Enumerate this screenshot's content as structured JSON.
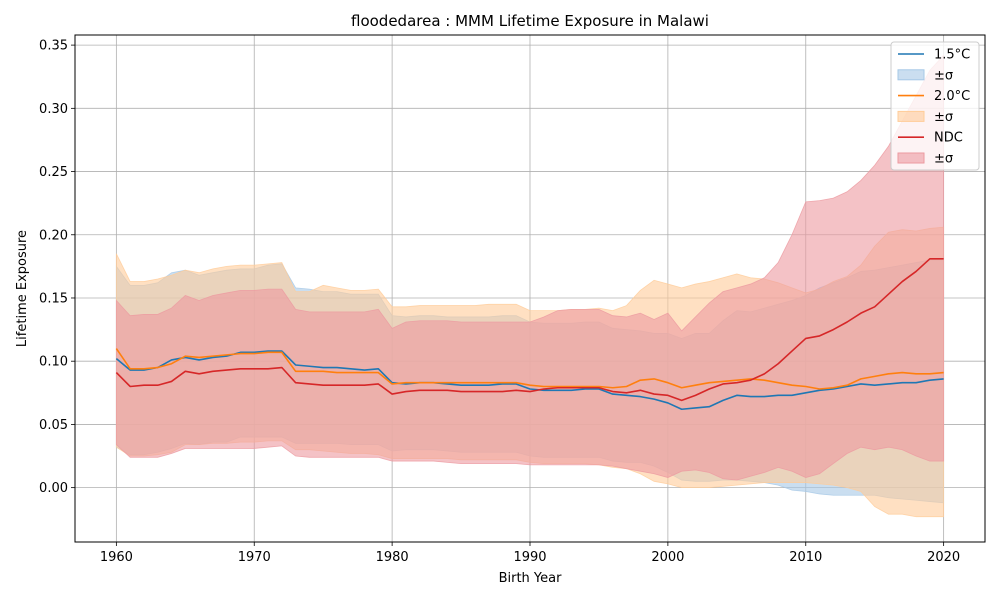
{
  "chart_data": {
    "type": "line",
    "title": "floodedarea : MMM Lifetime Exposure in Malawi",
    "xlabel": "Birth Year",
    "ylabel": "Lifetime Exposure",
    "xlim": [
      1957,
      2023
    ],
    "ylim": [
      -0.043,
      0.358
    ],
    "xticks": [
      1960,
      1970,
      1980,
      1990,
      2000,
      2010,
      2020
    ],
    "yticks": [
      0.0,
      0.05,
      0.1,
      0.15,
      0.2,
      0.25,
      0.3,
      0.35
    ],
    "ytick_labels": [
      "0.00",
      "0.05",
      "0.10",
      "0.15",
      "0.20",
      "0.25",
      "0.30",
      "0.35"
    ],
    "grid": true,
    "legend_position": "top-right",
    "x": [
      1960,
      1961,
      1962,
      1963,
      1964,
      1965,
      1966,
      1967,
      1968,
      1969,
      1970,
      1971,
      1972,
      1973,
      1974,
      1975,
      1976,
      1977,
      1978,
      1979,
      1980,
      1981,
      1982,
      1983,
      1984,
      1985,
      1986,
      1987,
      1988,
      1989,
      1990,
      1991,
      1992,
      1993,
      1994,
      1995,
      1996,
      1997,
      1998,
      1999,
      2000,
      2001,
      2002,
      2003,
      2004,
      2005,
      2006,
      2007,
      2008,
      2009,
      2010,
      2011,
      2012,
      2013,
      2014,
      2015,
      2016,
      2017,
      2018,
      2019,
      2020
    ],
    "series": [
      {
        "name": "1.5°C",
        "band_label": "±σ",
        "color": "#1f77b4",
        "band_color": "#a6c8e6",
        "values": [
          0.102,
          0.093,
          0.093,
          0.095,
          0.101,
          0.103,
          0.101,
          0.103,
          0.104,
          0.107,
          0.107,
          0.108,
          0.108,
          0.097,
          0.096,
          0.095,
          0.095,
          0.094,
          0.093,
          0.094,
          0.083,
          0.082,
          0.083,
          0.083,
          0.082,
          0.081,
          0.081,
          0.081,
          0.082,
          0.082,
          0.078,
          0.077,
          0.077,
          0.077,
          0.078,
          0.078,
          0.074,
          0.073,
          0.072,
          0.07,
          0.067,
          0.062,
          0.063,
          0.064,
          0.069,
          0.073,
          0.072,
          0.072,
          0.073,
          0.073,
          0.075,
          0.077,
          0.078,
          0.08,
          0.082,
          0.081,
          0.082,
          0.083,
          0.083,
          0.085,
          0.086
        ],
        "upper": [
          0.175,
          0.16,
          0.16,
          0.162,
          0.17,
          0.172,
          0.168,
          0.17,
          0.172,
          0.173,
          0.173,
          0.176,
          0.177,
          0.158,
          0.157,
          0.155,
          0.155,
          0.153,
          0.153,
          0.153,
          0.136,
          0.135,
          0.136,
          0.136,
          0.135,
          0.135,
          0.135,
          0.135,
          0.136,
          0.136,
          0.131,
          0.13,
          0.13,
          0.13,
          0.131,
          0.131,
          0.126,
          0.125,
          0.124,
          0.122,
          0.122,
          0.118,
          0.122,
          0.122,
          0.132,
          0.14,
          0.139,
          0.142,
          0.145,
          0.148,
          0.152,
          0.158,
          0.162,
          0.166,
          0.171,
          0.172,
          0.174,
          0.176,
          0.178,
          0.18,
          0.18
        ],
        "lower": [
          0.032,
          0.026,
          0.026,
          0.028,
          0.031,
          0.035,
          0.034,
          0.036,
          0.036,
          0.04,
          0.04,
          0.04,
          0.04,
          0.035,
          0.035,
          0.035,
          0.035,
          0.034,
          0.034,
          0.034,
          0.029,
          0.03,
          0.03,
          0.03,
          0.029,
          0.028,
          0.028,
          0.028,
          0.028,
          0.028,
          0.025,
          0.024,
          0.024,
          0.024,
          0.024,
          0.024,
          0.021,
          0.02,
          0.02,
          0.017,
          0.012,
          0.006,
          0.005,
          0.005,
          0.006,
          0.006,
          0.005,
          0.004,
          0.002,
          -0.002,
          -0.003,
          -0.005,
          -0.006,
          -0.006,
          -0.006,
          -0.006,
          -0.008,
          -0.009,
          -0.01,
          -0.011,
          -0.012
        ]
      },
      {
        "name": "2.0°C",
        "band_label": "±σ",
        "color": "#ff7f0e",
        "band_color": "#ffcc99",
        "values": [
          0.11,
          0.094,
          0.094,
          0.095,
          0.098,
          0.104,
          0.103,
          0.104,
          0.105,
          0.106,
          0.106,
          0.107,
          0.107,
          0.092,
          0.092,
          0.092,
          0.091,
          0.091,
          0.091,
          0.091,
          0.082,
          0.083,
          0.083,
          0.083,
          0.083,
          0.083,
          0.083,
          0.083,
          0.083,
          0.083,
          0.081,
          0.08,
          0.08,
          0.08,
          0.08,
          0.08,
          0.079,
          0.08,
          0.085,
          0.086,
          0.083,
          0.079,
          0.081,
          0.083,
          0.084,
          0.085,
          0.086,
          0.085,
          0.083,
          0.081,
          0.08,
          0.078,
          0.079,
          0.081,
          0.086,
          0.088,
          0.09,
          0.091,
          0.09,
          0.09,
          0.091
        ],
        "upper": [
          0.185,
          0.163,
          0.163,
          0.165,
          0.168,
          0.172,
          0.17,
          0.173,
          0.175,
          0.176,
          0.176,
          0.177,
          0.178,
          0.155,
          0.155,
          0.16,
          0.158,
          0.156,
          0.156,
          0.157,
          0.143,
          0.143,
          0.144,
          0.144,
          0.144,
          0.144,
          0.144,
          0.145,
          0.145,
          0.145,
          0.14,
          0.14,
          0.14,
          0.141,
          0.141,
          0.142,
          0.14,
          0.144,
          0.156,
          0.164,
          0.161,
          0.158,
          0.161,
          0.163,
          0.166,
          0.169,
          0.166,
          0.165,
          0.162,
          0.158,
          0.154,
          0.157,
          0.163,
          0.167,
          0.176,
          0.191,
          0.202,
          0.204,
          0.203,
          0.205,
          0.206
        ],
        "lower": [
          0.032,
          0.025,
          0.025,
          0.026,
          0.028,
          0.034,
          0.034,
          0.035,
          0.035,
          0.036,
          0.036,
          0.037,
          0.037,
          0.03,
          0.03,
          0.029,
          0.028,
          0.027,
          0.027,
          0.026,
          0.023,
          0.023,
          0.023,
          0.023,
          0.023,
          0.022,
          0.022,
          0.022,
          0.022,
          0.022,
          0.02,
          0.019,
          0.019,
          0.019,
          0.019,
          0.018,
          0.016,
          0.015,
          0.011,
          0.005,
          0.003,
          0.0,
          0.0,
          0.0,
          0.001,
          0.002,
          0.003,
          0.004,
          0.004,
          0.004,
          0.004,
          0.003,
          0.002,
          0.0,
          -0.003,
          -0.015,
          -0.021,
          -0.021,
          -0.023,
          -0.023,
          -0.023
        ]
      },
      {
        "name": "NDC",
        "band_label": "±σ",
        "color": "#d62728",
        "band_color": "#ec9aa0",
        "values": [
          0.091,
          0.08,
          0.081,
          0.081,
          0.084,
          0.092,
          0.09,
          0.092,
          0.093,
          0.094,
          0.094,
          0.094,
          0.095,
          0.083,
          0.082,
          0.081,
          0.081,
          0.081,
          0.081,
          0.082,
          0.074,
          0.076,
          0.077,
          0.077,
          0.077,
          0.076,
          0.076,
          0.076,
          0.076,
          0.077,
          0.076,
          0.078,
          0.079,
          0.079,
          0.079,
          0.079,
          0.076,
          0.075,
          0.077,
          0.074,
          0.073,
          0.069,
          0.073,
          0.078,
          0.082,
          0.083,
          0.085,
          0.09,
          0.098,
          0.108,
          0.118,
          0.12,
          0.125,
          0.131,
          0.138,
          0.143,
          0.153,
          0.163,
          0.171,
          0.181,
          0.181
        ],
        "upper": [
          0.148,
          0.136,
          0.137,
          0.137,
          0.142,
          0.152,
          0.148,
          0.152,
          0.154,
          0.156,
          0.156,
          0.157,
          0.157,
          0.141,
          0.139,
          0.139,
          0.139,
          0.139,
          0.139,
          0.141,
          0.126,
          0.131,
          0.132,
          0.132,
          0.132,
          0.131,
          0.131,
          0.131,
          0.131,
          0.131,
          0.131,
          0.135,
          0.14,
          0.141,
          0.141,
          0.141,
          0.136,
          0.135,
          0.138,
          0.133,
          0.138,
          0.124,
          0.135,
          0.146,
          0.155,
          0.158,
          0.161,
          0.166,
          0.178,
          0.2,
          0.226,
          0.227,
          0.229,
          0.234,
          0.243,
          0.255,
          0.27,
          0.29,
          0.31,
          0.33,
          0.342
        ],
        "lower": [
          0.034,
          0.024,
          0.024,
          0.024,
          0.027,
          0.031,
          0.031,
          0.031,
          0.031,
          0.031,
          0.031,
          0.032,
          0.033,
          0.025,
          0.024,
          0.024,
          0.024,
          0.024,
          0.024,
          0.024,
          0.021,
          0.021,
          0.021,
          0.021,
          0.02,
          0.019,
          0.019,
          0.019,
          0.019,
          0.019,
          0.018,
          0.018,
          0.018,
          0.018,
          0.018,
          0.018,
          0.017,
          0.015,
          0.013,
          0.011,
          0.008,
          0.013,
          0.014,
          0.012,
          0.007,
          0.006,
          0.009,
          0.012,
          0.016,
          0.013,
          0.008,
          0.011,
          0.019,
          0.027,
          0.032,
          0.03,
          0.032,
          0.03,
          0.025,
          0.021,
          0.021
        ]
      }
    ]
  }
}
